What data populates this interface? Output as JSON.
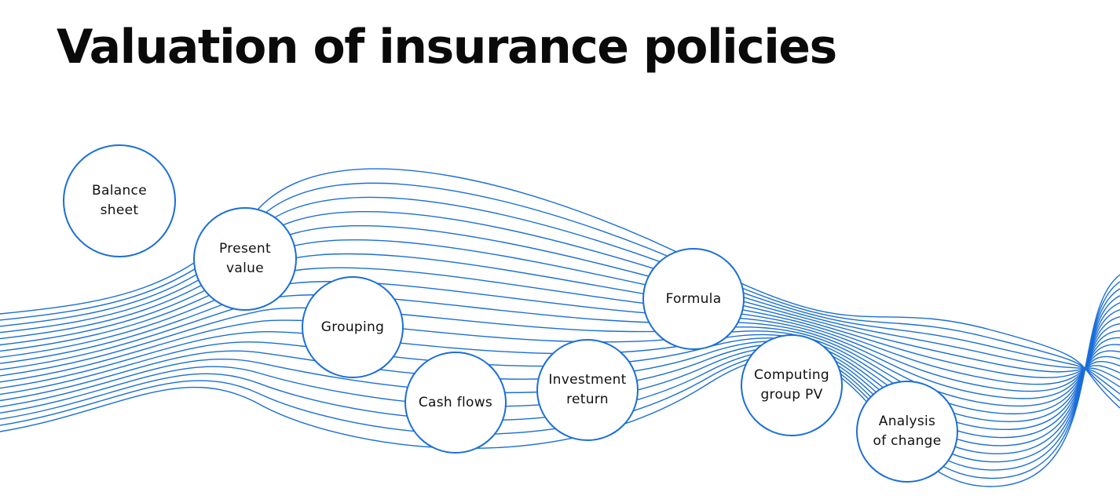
{
  "title": "Valuation of insurance policies",
  "accent_color": "#1a6ed8",
  "nodes": [
    {
      "id": "balance-sheet",
      "label": "Balance\nsheet"
    },
    {
      "id": "present-value",
      "label": "Present\nvalue"
    },
    {
      "id": "grouping",
      "label": "Grouping"
    },
    {
      "id": "cash-flows",
      "label": "Cash flows"
    },
    {
      "id": "investment-return",
      "label": "Investment\nreturn"
    },
    {
      "id": "formula",
      "label": "Formula"
    },
    {
      "id": "computing-group-pv",
      "label": "Computing\ngroup PV"
    },
    {
      "id": "analysis-of-change",
      "label": "Analysis\nof change"
    }
  ]
}
